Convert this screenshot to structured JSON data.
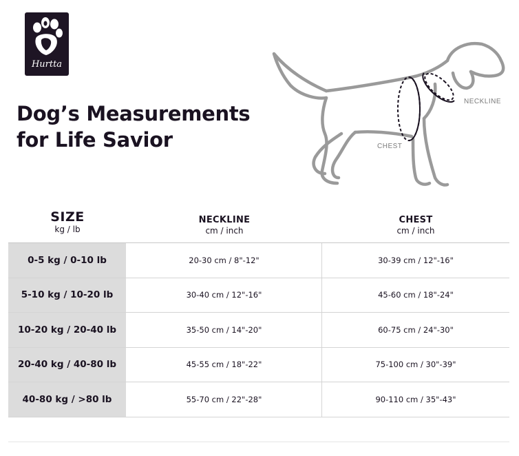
{
  "brand": {
    "name": "Hurtta",
    "logo_icon": "paw-icon",
    "logo_bg": "#1e1524"
  },
  "title": {
    "line1": "Dog’s Measurements",
    "line2": "for Life Savior"
  },
  "illustration": {
    "neckline_label": "NECKLINE",
    "chest_label": "CHEST",
    "icon": "dog-outline-icon"
  },
  "headers": {
    "size": {
      "main": "SIZE",
      "sub": "kg / lb"
    },
    "neckline": {
      "main": "NECKLINE",
      "sub": "cm / inch"
    },
    "chest": {
      "main": "CHEST",
      "sub": "cm / inch"
    }
  },
  "rows": [
    {
      "size": "0-5 kg / 0-10 lb",
      "neckline": "20-30 cm / 8\"-12\"",
      "chest": "30-39 cm / 12\"-16\""
    },
    {
      "size": "5-10 kg / 10-20 lb",
      "neckline": "30-40 cm / 12\"-16\"",
      "chest": "45-60 cm / 18\"-24\""
    },
    {
      "size": "10-20 kg / 20-40 lb",
      "neckline": "35-50 cm / 14\"-20\"",
      "chest": "60-75 cm / 24\"-30\""
    },
    {
      "size": "20-40 kg / 40-80 lb",
      "neckline": "45-55 cm / 18\"-22\"",
      "chest": "75-100 cm / 30\"-39\""
    },
    {
      "size": "40-80 kg / >80 lb",
      "neckline": "55-70 cm / 22\"-28\"",
      "chest": "90-110 cm / 35\"-43\""
    }
  ],
  "colors": {
    "size_column_bg": "#dcdcdc",
    "text": "#1a1221",
    "outline": "#9a9a9a"
  }
}
